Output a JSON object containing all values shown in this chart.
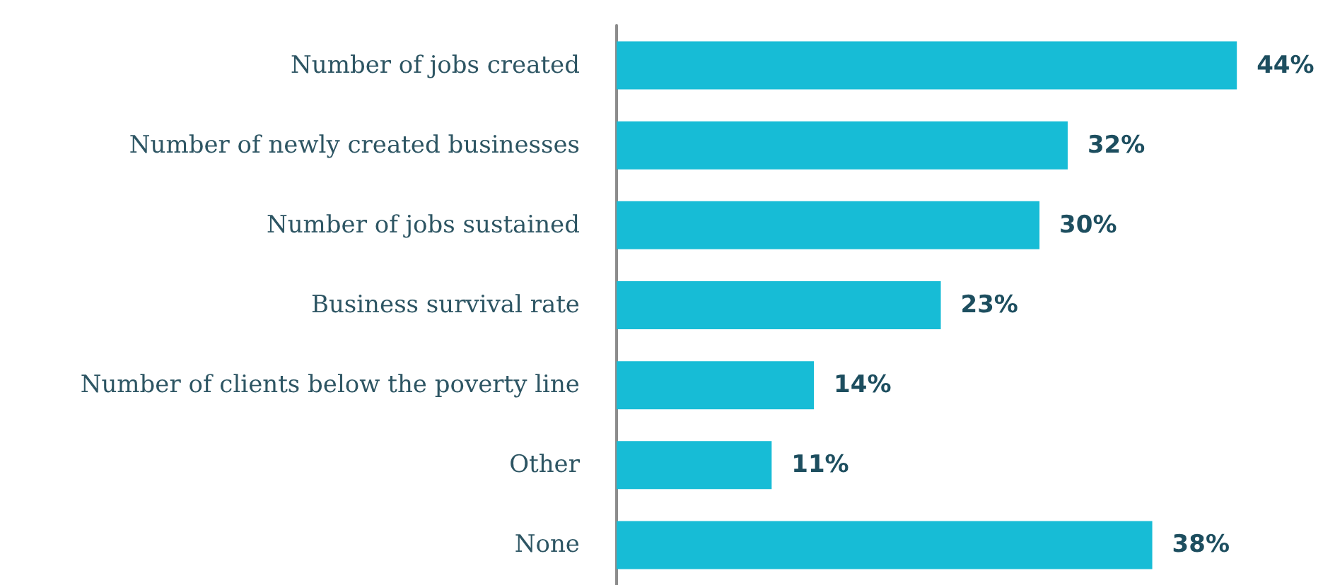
{
  "chart_data": {
    "type": "bar",
    "orientation": "horizontal",
    "categories": [
      "Number of jobs created",
      "Number of newly created businesses",
      "Number of jobs sustained",
      "Business survival rate",
      "Number of clients below the poverty line",
      "Other",
      "None"
    ],
    "values": [
      44,
      32,
      30,
      23,
      14,
      11,
      38
    ],
    "value_labels": [
      "44%",
      "32%",
      "30%",
      "23%",
      "14%",
      "11%",
      "38%"
    ],
    "color": "#17bcd6"
  }
}
